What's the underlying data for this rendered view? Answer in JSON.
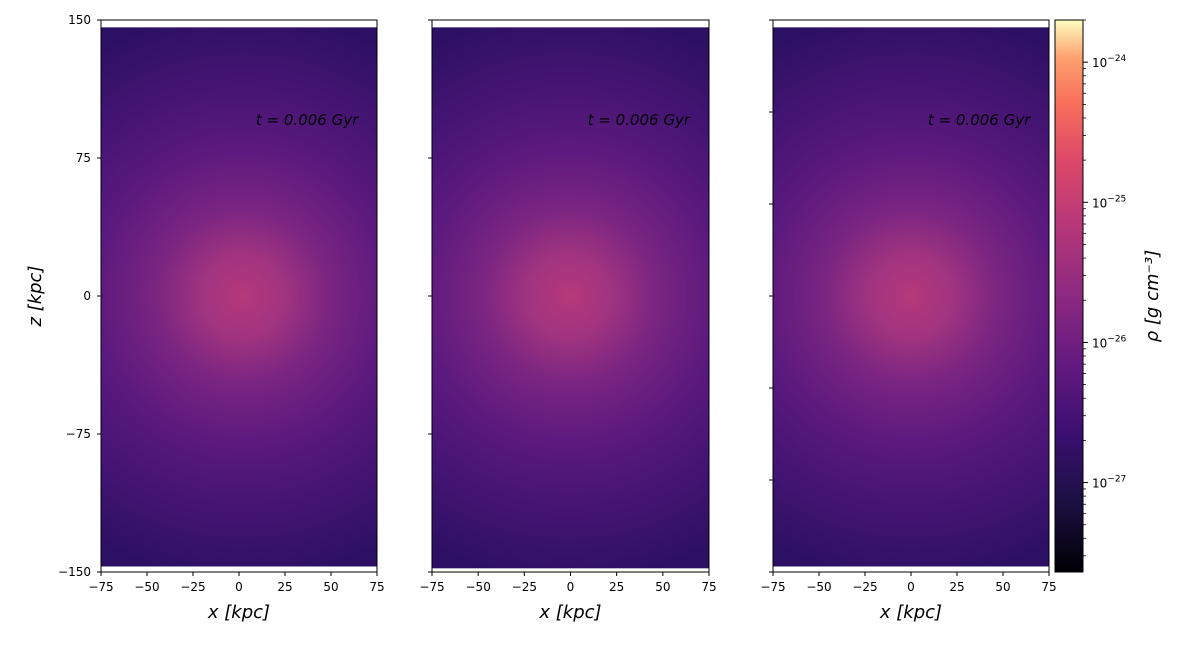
{
  "chart_data": [
    {
      "type": "heatmap",
      "xlabel": "x [kpc]",
      "ylabel": "z [kpc]",
      "xlim": [
        -75,
        75
      ],
      "ylim": [
        -150,
        150
      ],
      "xticks": [
        -75,
        -50,
        -25,
        0,
        25,
        50,
        75
      ],
      "xtick_labels": [
        "−75",
        "−50",
        "−25",
        "0",
        "25",
        "50",
        "75"
      ],
      "yticks": [
        -150,
        -75,
        0,
        75,
        150
      ],
      "ytick_labels": [
        "−150",
        "−75",
        "0",
        "75",
        "150"
      ],
      "data_extent": {
        "x": [
          -75,
          75
        ],
        "z": [
          -147,
          146
        ]
      },
      "annotation": {
        "text": "t = 0.006 Gyr",
        "x": 37,
        "z": 93
      },
      "density_center": {
        "x": 2,
        "z": 0
      },
      "colormap": "magma"
    },
    {
      "type": "heatmap",
      "xlabel": "x [kpc]",
      "xlim": [
        -75,
        75
      ],
      "ylim": [
        -150,
        150
      ],
      "xticks": [
        -75,
        -50,
        -25,
        0,
        25,
        50,
        75
      ],
      "xtick_labels": [
        "−75",
        "−50",
        "−25",
        "0",
        "25",
        "50",
        "75"
      ],
      "yticks": [
        -150,
        -75,
        0,
        75,
        150
      ],
      "data_extent": {
        "x": [
          -75,
          75
        ],
        "z": [
          -148,
          146
        ]
      },
      "annotation": {
        "text": "t = 0.006 Gyr",
        "x": 37,
        "z": 93
      },
      "density_center": {
        "x": -1,
        "z": 0
      },
      "colormap": "magma"
    },
    {
      "type": "heatmap",
      "xlabel": "x [kpc]",
      "xlim": [
        -75,
        75
      ],
      "ylim": [
        -150,
        150
      ],
      "xticks": [
        -75,
        -50,
        -25,
        0,
        25,
        50,
        75
      ],
      "xtick_labels": [
        "−75",
        "−50",
        "−25",
        "0",
        "25",
        "50",
        "75"
      ],
      "yticks": [
        -150,
        -100,
        -50,
        0,
        50,
        100,
        150
      ],
      "data_extent": {
        "x": [
          -75,
          75
        ],
        "z": [
          -147,
          146
        ]
      },
      "annotation": {
        "text": "t = 0.006 Gyr",
        "x": 37,
        "z": 93
      },
      "density_center": {
        "x": 0,
        "z": 0
      },
      "colormap": "magma"
    }
  ],
  "colorbar": {
    "label": "ρ [g cm⁻³]",
    "scale": "log",
    "range": [
      2.3e-28,
      2e-24
    ],
    "ticks": [
      {
        "value": 1e-27,
        "base": "10",
        "exp": "−27"
      },
      {
        "value": 1e-26,
        "base": "10",
        "exp": "−26"
      },
      {
        "value": 1e-25,
        "base": "10",
        "exp": "−25"
      },
      {
        "value": 1e-24,
        "base": "10",
        "exp": "−24"
      }
    ],
    "colormap": "magma"
  },
  "colors": {
    "center": "#b5387a",
    "mid": "#5d1a7e",
    "edge": "#2b1063",
    "frame": "#000000"
  }
}
